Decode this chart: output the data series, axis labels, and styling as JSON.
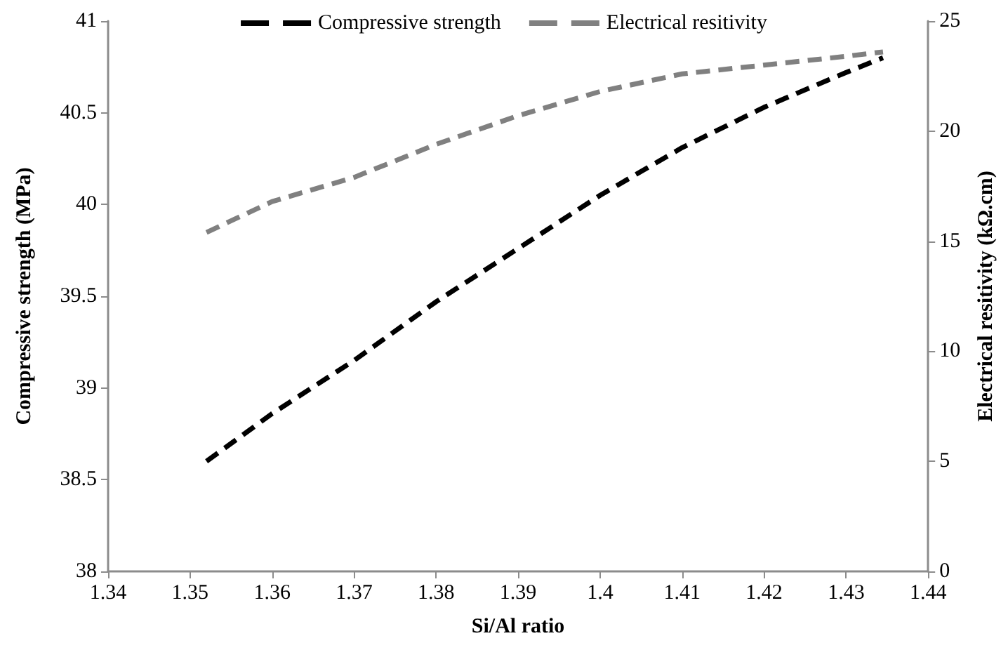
{
  "chart_data": {
    "type": "line",
    "xlabel": "Si/Al ratio",
    "ylabel": "Compressive strength (MPa)",
    "y2label": "Electrical resitivity (kΩ.cm)",
    "x": [
      1.352,
      1.36,
      1.37,
      1.38,
      1.39,
      1.4,
      1.41,
      1.42,
      1.43,
      1.4345
    ],
    "series": [
      {
        "name": "Compressive strength",
        "color": "#000000",
        "values": [
          38.6,
          38.86,
          39.15,
          39.47,
          39.76,
          40.05,
          40.31,
          40.53,
          40.72,
          40.8
        ]
      },
      {
        "name": "Electrical resitivity",
        "color": "#808080",
        "axis": "y2",
        "values": [
          15.4,
          16.8,
          17.9,
          19.4,
          20.7,
          21.8,
          22.6,
          23.0,
          23.4,
          23.6
        ]
      }
    ],
    "xlim": [
      1.34,
      1.44
    ],
    "xticks": [
      1.34,
      1.35,
      1.36,
      1.37,
      1.38,
      1.39,
      1.4,
      1.41,
      1.42,
      1.43,
      1.44
    ],
    "ylim": [
      38,
      41
    ],
    "yticks": [
      38,
      38.5,
      39,
      39.5,
      40,
      40.5,
      41
    ],
    "y2lim": [
      0,
      25
    ],
    "y2ticks": [
      0,
      5,
      10,
      15,
      20,
      25
    ],
    "legend": "top",
    "marker": "none",
    "line_style": "dashed",
    "grid": false
  }
}
